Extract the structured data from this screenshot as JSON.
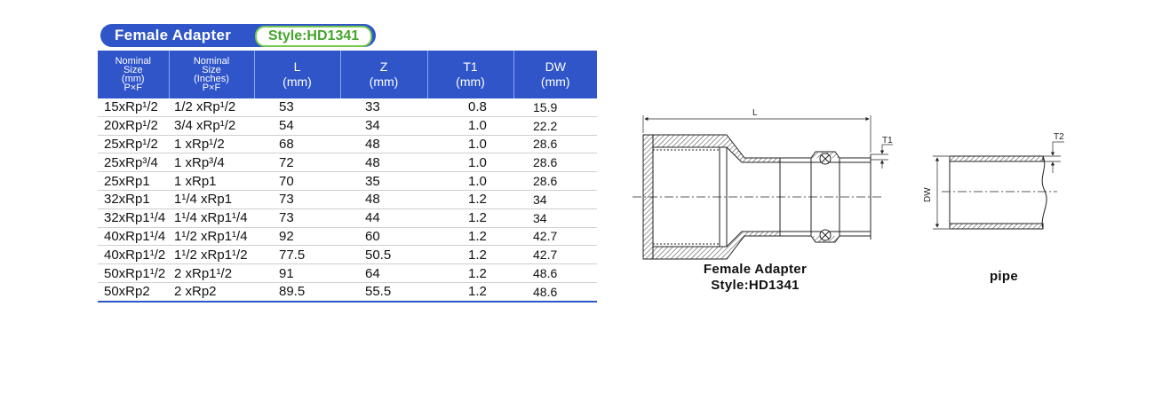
{
  "title": {
    "name": "Female Adapter",
    "style": "Style:HD1341"
  },
  "table": {
    "headers": [
      {
        "lines": [
          "Nominal",
          "Size",
          "(mm)",
          "P×F"
        ]
      },
      {
        "lines": [
          "Nominal",
          "Size",
          "(Inches)",
          "P×F"
        ]
      },
      {
        "lines": [
          "L",
          "(mm)"
        ]
      },
      {
        "lines": [
          "Z",
          "(mm)"
        ]
      },
      {
        "lines": [
          "T1",
          "(mm)"
        ]
      },
      {
        "lines": [
          "DW",
          "(mm)"
        ]
      }
    ],
    "rows": [
      [
        "15xRp¹/2",
        "1/2 xRp¹/2",
        "53",
        "33",
        "0.8",
        "15.9"
      ],
      [
        "20xRp¹/2",
        "3/4 xRp¹/2",
        "54",
        "34",
        "1.0",
        "22.2"
      ],
      [
        "25xRp¹/2",
        "1 xRp¹/2",
        "68",
        "48",
        "1.0",
        "28.6"
      ],
      [
        "25xRp³/4",
        "1 xRp³/4",
        "72",
        "48",
        "1.0",
        "28.6"
      ],
      [
        "25xRp1",
        "1 xRp1",
        "70",
        "35",
        "1.0",
        "28.6"
      ],
      [
        "32xRp1",
        "1¹/4 xRp1",
        "73",
        "48",
        "1.2",
        "34"
      ],
      [
        "32xRp1¹/4",
        "1¹/4 xRp1¹/4",
        "73",
        "44",
        "1.2",
        "34"
      ],
      [
        "40xRp1¹/4",
        "1¹/2 xRp1¹/4",
        "92",
        "60",
        "1.2",
        "42.7"
      ],
      [
        "40xRp1¹/2",
        "1¹/2 xRp1¹/2",
        "77.5",
        "50.5",
        "1.2",
        "42.7"
      ],
      [
        "50xRp1¹/2",
        "2 xRp1¹/2",
        "91",
        "64",
        "1.2",
        "48.6"
      ],
      [
        "50xRp2",
        "2 xRp2",
        "89.5",
        "55.5",
        "1.2",
        "48.6"
      ]
    ]
  },
  "drawing": {
    "adapter_dim_labels": {
      "length": "L",
      "wall": "T1"
    },
    "adapter_caption": [
      "Female Adapter",
      "Style:HD1341"
    ],
    "pipe_dim_labels": {
      "diameter": "DW",
      "wall": "T2"
    },
    "pipe_caption": "pipe"
  },
  "colors": {
    "header_blue": "#2f55c9",
    "style_green": "#45a52c",
    "hatch": "#555555"
  }
}
